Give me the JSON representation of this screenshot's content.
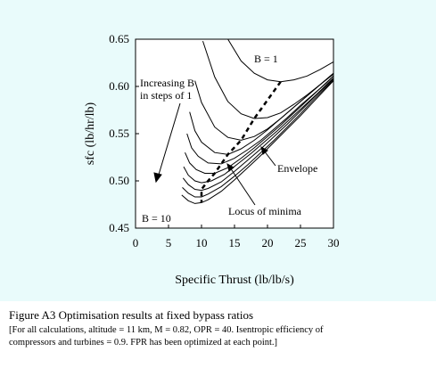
{
  "chart_data": {
    "type": "line",
    "xlabel": "Specific Thrust (lb/lb/s)",
    "ylabel": "sfc (lb/hr/lb)",
    "xlim": [
      0,
      30
    ],
    "ylim": [
      0.45,
      0.65
    ],
    "x_ticks": [
      0,
      5,
      10,
      15,
      20,
      25,
      30
    ],
    "y_ticks": [
      0.45,
      0.5,
      0.55,
      0.6,
      0.65
    ],
    "x_tick_labels": [
      "0",
      "5",
      "10",
      "15",
      "20",
      "25",
      "30"
    ],
    "y_tick_labels": [
      "0.45",
      "0.50",
      "0.55",
      "0.60",
      "0.65"
    ],
    "grid": false,
    "series": [
      {
        "label_b": "1",
        "x": [
          14.0,
          16.0,
          18.0,
          20.0,
          22.0,
          24.0,
          26.0,
          28.0,
          30.0
        ],
        "y": [
          0.65,
          0.627,
          0.614,
          0.607,
          0.605,
          0.607,
          0.611,
          0.618,
          0.626
        ]
      },
      {
        "label_b": "2",
        "x": [
          10.2,
          12.0,
          14.0,
          16.0,
          18.0,
          20.0,
          22.0,
          24.0,
          26.0,
          28.0,
          30.0
        ],
        "y": [
          0.648,
          0.61,
          0.584,
          0.571,
          0.566,
          0.567,
          0.572,
          0.581,
          0.591,
          0.602,
          0.613
        ]
      },
      {
        "label_b": "3",
        "x": [
          9.0,
          10.0,
          12.0,
          14.0,
          16.0,
          18.0,
          20.0,
          22.0,
          24.0,
          26.0,
          28.0,
          30.0
        ],
        "y": [
          0.606,
          0.583,
          0.557,
          0.546,
          0.543,
          0.547,
          0.555,
          0.566,
          0.578,
          0.59,
          0.602,
          0.614
        ]
      },
      {
        "label_b": "4",
        "x": [
          8.2,
          9.0,
          10.0,
          12.0,
          14.0,
          16.0,
          18.0,
          20.0,
          22.0,
          24.0,
          26.0,
          28.0,
          30.0
        ],
        "y": [
          0.573,
          0.553,
          0.541,
          0.53,
          0.528,
          0.534,
          0.543,
          0.554,
          0.566,
          0.578,
          0.59,
          0.602,
          0.614
        ]
      },
      {
        "label_b": "5",
        "x": [
          7.8,
          8.5,
          9.5,
          11.0,
          13.0,
          15.0,
          17.0,
          19.0,
          21.0,
          23.0,
          25.0,
          27.0,
          29.0,
          30.0
        ],
        "y": [
          0.55,
          0.535,
          0.526,
          0.519,
          0.518,
          0.524,
          0.533,
          0.543,
          0.555,
          0.567,
          0.58,
          0.592,
          0.604,
          0.611
        ]
      },
      {
        "label_b": "6",
        "x": [
          7.5,
          8.2,
          9.2,
          10.5,
          12.0,
          14.0,
          16.0,
          18.0,
          20.0,
          22.0,
          24.0,
          26.0,
          28.0,
          30.0
        ],
        "y": [
          0.53,
          0.519,
          0.512,
          0.508,
          0.508,
          0.514,
          0.524,
          0.535,
          0.547,
          0.559,
          0.572,
          0.585,
          0.598,
          0.611
        ]
      },
      {
        "label_b": "7",
        "x": [
          7.3,
          8.0,
          9.0,
          10.0,
          11.5,
          13.5,
          15.5,
          17.5,
          19.5,
          21.5,
          23.5,
          25.5,
          27.5,
          30.0
        ],
        "y": [
          0.515,
          0.506,
          0.5,
          0.498,
          0.5,
          0.507,
          0.518,
          0.529,
          0.541,
          0.553,
          0.566,
          0.579,
          0.592,
          0.609
        ]
      },
      {
        "label_b": "8",
        "x": [
          7.2,
          8.0,
          9.0,
          10.0,
          11.0,
          13.0,
          15.0,
          17.0,
          19.0,
          21.0,
          23.0,
          25.0,
          27.0,
          30.0
        ],
        "y": [
          0.503,
          0.496,
          0.491,
          0.49,
          0.492,
          0.499,
          0.51,
          0.522,
          0.534,
          0.547,
          0.56,
          0.574,
          0.588,
          0.608
        ]
      },
      {
        "label_b": "9",
        "x": [
          7.1,
          8.0,
          9.0,
          10.0,
          11.0,
          13.0,
          15.0,
          17.0,
          19.0,
          21.0,
          23.0,
          25.0,
          27.0,
          30.0
        ],
        "y": [
          0.493,
          0.487,
          0.483,
          0.483,
          0.486,
          0.494,
          0.505,
          0.517,
          0.53,
          0.543,
          0.557,
          0.571,
          0.586,
          0.607
        ]
      },
      {
        "label_b": "10",
        "x": [
          7.0,
          8.0,
          9.0,
          10.0,
          11.0,
          13.0,
          15.0,
          17.0,
          19.0,
          21.0,
          23.0,
          25.0,
          27.0,
          30.0
        ],
        "y": [
          0.485,
          0.479,
          0.476,
          0.477,
          0.48,
          0.489,
          0.501,
          0.514,
          0.527,
          0.541,
          0.555,
          0.569,
          0.584,
          0.606
        ]
      }
    ],
    "locus_of_minima": {
      "x": [
        22.0,
        18.0,
        16.0,
        14.0,
        13.0,
        12.0,
        11.0,
        10.0,
        10.0,
        10.0
      ],
      "y": [
        0.605,
        0.566,
        0.543,
        0.528,
        0.518,
        0.508,
        0.5,
        0.491,
        0.483,
        0.477
      ]
    },
    "annotations": {
      "b_top": "B = 1",
      "b_bottom": "B = 10",
      "increasing_line1": "Increasing B",
      "increasing_line2": "in steps of 1",
      "envelope": "Envelope",
      "locus": "Locus of minima"
    }
  },
  "caption": {
    "title": "Figure A3    Optimisation results at fixed bypass ratios",
    "note_line1": "[For all calculations, altitude = 11 km, M = 0.82, OPR = 40.  Isentropic efficiency of",
    "note_line2": "compressors and turbines = 0.9.  FPR has been optimized at each point.]"
  }
}
